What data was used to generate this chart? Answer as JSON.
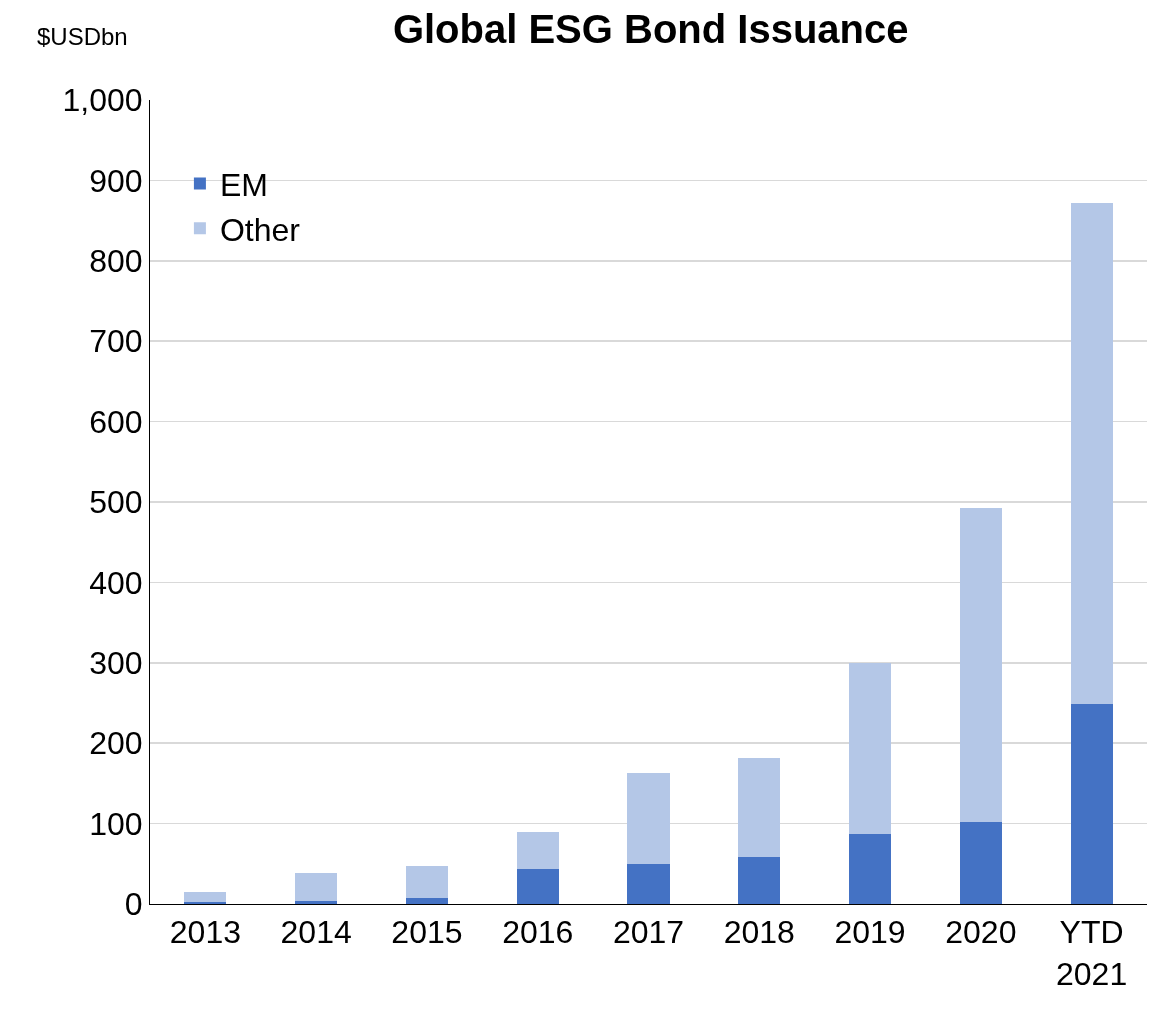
{
  "chart_data": {
    "type": "bar",
    "title": "Global ESG Bond Issuance",
    "ylabel": "$USDbn",
    "categories": [
      "2013",
      "2014",
      "2015",
      "2016",
      "2017",
      "2018",
      "2019",
      "2020",
      "YTD 2021"
    ],
    "series": [
      {
        "name": "EM",
        "color": "#4472c4",
        "values": [
          3,
          4,
          7,
          43,
          50,
          58,
          87,
          102,
          249
        ]
      },
      {
        "name": "Other",
        "color": "#b4c7e7",
        "values": [
          12,
          34,
          40,
          47,
          113,
          124,
          213,
          391,
          623
        ]
      }
    ],
    "stacked": true,
    "ylim": [
      0,
      1000
    ],
    "yticks": [
      0,
      100,
      200,
      300,
      400,
      500,
      600,
      700,
      800,
      900,
      {
        "value": 1000,
        "label": "1,000"
      }
    ],
    "grid": "y",
    "legend": "top left"
  }
}
